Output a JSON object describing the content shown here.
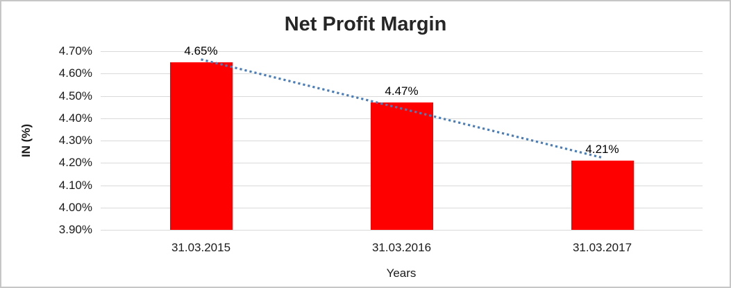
{
  "chart_data": {
    "type": "bar",
    "title": "Net Profit Margin",
    "xlabel": "Years",
    "ylabel": "IN (%)",
    "categories": [
      "31.03.2015",
      "31.03.2016",
      "31.03.2017"
    ],
    "values": [
      4.65,
      4.47,
      4.21
    ],
    "data_labels": [
      "4.65%",
      "4.47%",
      "4.21%"
    ],
    "y_ticks": [
      "4.70%",
      "4.60%",
      "4.50%",
      "4.40%",
      "4.30%",
      "4.20%",
      "4.10%",
      "4.00%",
      "3.90%"
    ],
    "ylim": [
      3.9,
      4.7
    ],
    "grid": true,
    "legend": "none",
    "bar_color": "#ff0000",
    "trendline": {
      "type": "linear",
      "style": "dotted",
      "color": "#4a7ebb"
    }
  }
}
